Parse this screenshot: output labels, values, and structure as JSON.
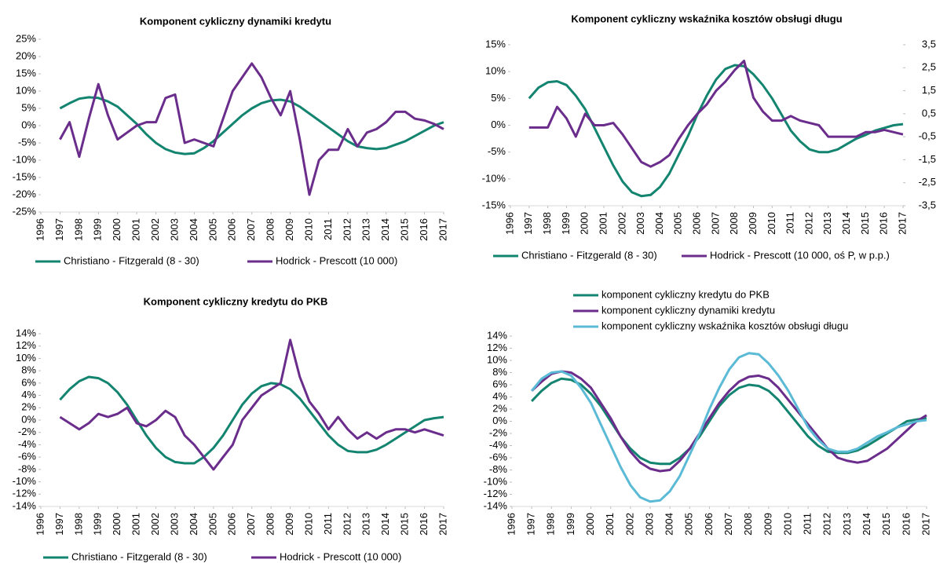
{
  "chart_data": [
    {
      "type": "line",
      "title": "Komponent cykliczny dynamiki kredytu",
      "legend": "bottom",
      "x": [
        1997,
        1997.5,
        1998,
        1998.5,
        1999,
        1999.5,
        2000,
        2000.5,
        2001,
        2001.5,
        2002,
        2002.5,
        2003,
        2003.5,
        2004,
        2004.5,
        2005,
        2005.5,
        2006,
        2006.5,
        2007,
        2007.5,
        2008,
        2008.5,
        2009,
        2009.5,
        2010,
        2010.5,
        2011,
        2011.5,
        2012,
        2012.5,
        2013,
        2013.5,
        2014,
        2014.5,
        2015,
        2015.5,
        2016,
        2016.5,
        2017
      ],
      "xlim": [
        1996,
        2017
      ],
      "xticks": [
        1996,
        1997,
        1998,
        1999,
        2000,
        2001,
        2002,
        2003,
        2004,
        2005,
        2006,
        2007,
        2008,
        2009,
        2010,
        2011,
        2012,
        2013,
        2014,
        2015,
        2016,
        2017
      ],
      "ylim": [
        -25,
        25
      ],
      "yticks": [
        {
          "value": -25,
          "label": "-25%"
        },
        {
          "value": -20,
          "label": "-20%"
        },
        {
          "value": -15,
          "label": "-15%"
        },
        {
          "value": -10,
          "label": "-10%"
        },
        {
          "value": -5,
          "label": "-5%"
        },
        {
          "value": 0,
          "label": "0%"
        },
        {
          "value": 5,
          "label": "5%"
        },
        {
          "value": 10,
          "label": "10%"
        },
        {
          "value": 15,
          "label": "15%"
        },
        {
          "value": 20,
          "label": "20%"
        },
        {
          "value": 25,
          "label": "25%"
        }
      ],
      "series": [
        {
          "name": "Christiano - Fitzgerald (8 - 30)",
          "color": "#13846f",
          "values": [
            5,
            6.5,
            7.8,
            8.2,
            8,
            7,
            5.5,
            3,
            0.5,
            -2.5,
            -5,
            -6.8,
            -7.8,
            -8.2,
            -8,
            -6.5,
            -4.5,
            -2,
            0.5,
            3,
            5,
            6.5,
            7.3,
            7.5,
            7,
            5.5,
            3.5,
            1.5,
            -0.5,
            -2.5,
            -4.5,
            -6,
            -6.5,
            -6.8,
            -6.5,
            -5.5,
            -4.5,
            -3,
            -1.5,
            0,
            1
          ]
        },
        {
          "name": "Hodrick - Prescott (10 000)",
          "color": "#6b2d8c",
          "values": [
            -4,
            1,
            -9,
            2,
            12,
            3,
            -4,
            -2,
            0,
            1,
            1,
            8,
            9,
            -5,
            -4,
            -5,
            -6,
            2,
            10,
            14,
            18,
            14,
            8,
            3,
            10,
            -4,
            -20,
            -10,
            -7,
            -7,
            -1,
            -6,
            -2,
            -1,
            1,
            4,
            4,
            2,
            1.5,
            0.5,
            -1
          ]
        }
      ]
    },
    {
      "type": "line",
      "title": "Komponent cykliczny wskaźnika kosztów obsługi długu",
      "legend": "bottom",
      "x": [
        1997,
        1997.5,
        1998,
        1998.5,
        1999,
        1999.5,
        2000,
        2000.5,
        2001,
        2001.5,
        2002,
        2002.5,
        2003,
        2003.5,
        2004,
        2004.5,
        2005,
        2005.5,
        2006,
        2006.5,
        2007,
        2007.5,
        2008,
        2008.5,
        2009,
        2009.5,
        2010,
        2010.5,
        2011,
        2011.5,
        2012,
        2012.5,
        2013,
        2013.5,
        2014,
        2014.5,
        2015,
        2015.5,
        2016,
        2016.5,
        2017
      ],
      "xlim": [
        1996,
        2017
      ],
      "xticks": [
        1996,
        1997,
        1998,
        1999,
        2000,
        2001,
        2002,
        2003,
        2004,
        2005,
        2006,
        2007,
        2008,
        2009,
        2010,
        2011,
        2012,
        2013,
        2014,
        2015,
        2016,
        2017
      ],
      "ylim": [
        -15,
        15
      ],
      "yticks": [
        {
          "value": -15,
          "label": "-15%"
        },
        {
          "value": -10,
          "label": "-10%"
        },
        {
          "value": -5,
          "label": "-5%"
        },
        {
          "value": 0,
          "label": "0%"
        },
        {
          "value": 5,
          "label": "5%"
        },
        {
          "value": 10,
          "label": "10%"
        },
        {
          "value": 15,
          "label": "15%"
        }
      ],
      "y2lim": [
        -3.5,
        3.5
      ],
      "y2ticks": [
        {
          "value": -3.5,
          "label": "-3,5"
        },
        {
          "value": -2.5,
          "label": "-2,5"
        },
        {
          "value": -1.5,
          "label": "-1,5"
        },
        {
          "value": -0.5,
          "label": "-0,5"
        },
        {
          "value": 0.5,
          "label": "0,5"
        },
        {
          "value": 1.5,
          "label": "1,5"
        },
        {
          "value": 2.5,
          "label": "2,5"
        },
        {
          "value": 3.5,
          "label": "3,5"
        }
      ],
      "series": [
        {
          "name": "Christiano - Fitzgerald (8 - 30)",
          "color": "#13846f",
          "values": [
            5,
            7,
            8,
            8.2,
            7.5,
            5.5,
            3,
            -0.5,
            -4,
            -7.5,
            -10.5,
            -12.5,
            -13.2,
            -13,
            -11.5,
            -9,
            -5.5,
            -2,
            2,
            5.5,
            8.5,
            10.5,
            11.2,
            11,
            9.5,
            7.5,
            5,
            2,
            -1,
            -3,
            -4.5,
            -5,
            -5,
            -4.5,
            -3.5,
            -2.5,
            -1.8,
            -1,
            -0.5,
            0,
            0.2
          ]
        },
        {
          "name": "Hodrick - Prescott (10 000, oś P, w p.p.)",
          "color": "#6b2d8c",
          "axis": "y2",
          "values": [
            -0.1,
            -0.1,
            -0.1,
            0.8,
            0.3,
            -0.5,
            0.5,
            0,
            0,
            0.1,
            -0.4,
            -1,
            -1.6,
            -1.8,
            -1.6,
            -1.3,
            -0.6,
            0,
            0.5,
            0.9,
            1.5,
            1.9,
            2.4,
            2.8,
            1.2,
            0.6,
            0.2,
            0.2,
            0.4,
            0.2,
            0.1,
            0,
            -0.5,
            -0.5,
            -0.5,
            -0.5,
            -0.3,
            -0.3,
            -0.2,
            -0.3,
            -0.4
          ]
        }
      ]
    },
    {
      "type": "line",
      "title": "Komponent cykliczny kredytu do PKB",
      "legend": "bottom",
      "x": [
        1997,
        1997.5,
        1998,
        1998.5,
        1999,
        1999.5,
        2000,
        2000.5,
        2001,
        2001.5,
        2002,
        2002.5,
        2003,
        2003.5,
        2004,
        2004.5,
        2005,
        2005.5,
        2006,
        2006.5,
        2007,
        2007.5,
        2008,
        2008.5,
        2009,
        2009.5,
        2010,
        2010.5,
        2011,
        2011.5,
        2012,
        2012.5,
        2013,
        2013.5,
        2014,
        2014.5,
        2015,
        2015.5,
        2016,
        2016.5,
        2017
      ],
      "xlim": [
        1996,
        2017
      ],
      "xticks": [
        1996,
        1997,
        1998,
        1999,
        2000,
        2001,
        2002,
        2003,
        2004,
        2005,
        2006,
        2007,
        2008,
        2009,
        2010,
        2011,
        2012,
        2013,
        2014,
        2015,
        2016,
        2017
      ],
      "ylim": [
        -14,
        14
      ],
      "yticks": [
        {
          "value": -14,
          "label": "-14%"
        },
        {
          "value": -12,
          "label": "-12%"
        },
        {
          "value": -10,
          "label": "-10%"
        },
        {
          "value": -8,
          "label": "-8%"
        },
        {
          "value": -6,
          "label": "-6%"
        },
        {
          "value": -4,
          "label": "-4%"
        },
        {
          "value": -2,
          "label": "-2%"
        },
        {
          "value": 0,
          "label": "0%"
        },
        {
          "value": 2,
          "label": "2%"
        },
        {
          "value": 4,
          "label": "4%"
        },
        {
          "value": 6,
          "label": "6%"
        },
        {
          "value": 8,
          "label": "8%"
        },
        {
          "value": 10,
          "label": "10%"
        },
        {
          "value": 12,
          "label": "12%"
        },
        {
          "value": 14,
          "label": "14%"
        }
      ],
      "series": [
        {
          "name": "Christiano - Fitzgerald (8 - 30)",
          "color": "#13846f",
          "values": [
            3.3,
            5,
            6.3,
            7,
            6.8,
            6,
            4.5,
            2.5,
            0,
            -2.5,
            -4.5,
            -6,
            -6.8,
            -7,
            -7,
            -6,
            -4.5,
            -2.5,
            0,
            2.5,
            4.3,
            5.5,
            6,
            5.8,
            5,
            3.5,
            1.5,
            -0.5,
            -2.5,
            -4,
            -5,
            -5.2,
            -5.2,
            -4.8,
            -4,
            -3,
            -2,
            -1,
            0,
            0.3,
            0.5
          ]
        },
        {
          "name": "Hodrick - Prescott (10 000)",
          "color": "#6b2d8c",
          "values": [
            0.5,
            -0.5,
            -1.5,
            -0.5,
            1,
            0.5,
            1,
            2,
            -0.5,
            -1,
            0,
            1.5,
            0.5,
            -2.5,
            -4,
            -6,
            -8,
            -6,
            -4,
            0,
            2,
            4,
            5,
            6,
            13,
            7,
            3,
            1,
            -1.5,
            0.5,
            -1.5,
            -3,
            -2,
            -3,
            -2,
            -1.5,
            -1.5,
            -2,
            -1.5,
            -2,
            -2.5
          ]
        }
      ]
    },
    {
      "type": "line",
      "legend": "top",
      "x": [
        1997,
        1997.5,
        1998,
        1998.5,
        1999,
        1999.5,
        2000,
        2000.5,
        2001,
        2001.5,
        2002,
        2002.5,
        2003,
        2003.5,
        2004,
        2004.5,
        2005,
        2005.5,
        2006,
        2006.5,
        2007,
        2007.5,
        2008,
        2008.5,
        2009,
        2009.5,
        2010,
        2010.5,
        2011,
        2011.5,
        2012,
        2012.5,
        2013,
        2013.5,
        2014,
        2014.5,
        2015,
        2015.5,
        2016,
        2016.5,
        2017
      ],
      "xlim": [
        1996,
        2017
      ],
      "xticks": [
        1996,
        1997,
        1998,
        1999,
        2000,
        2001,
        2002,
        2003,
        2004,
        2005,
        2006,
        2007,
        2008,
        2009,
        2010,
        2011,
        2012,
        2013,
        2014,
        2015,
        2016,
        2017
      ],
      "ylim": [
        -14,
        14
      ],
      "yticks": [
        {
          "value": -14,
          "label": "-14%"
        },
        {
          "value": -12,
          "label": "-12%"
        },
        {
          "value": -10,
          "label": "-10%"
        },
        {
          "value": -8,
          "label": "-8%"
        },
        {
          "value": -6,
          "label": "-6%"
        },
        {
          "value": -4,
          "label": "-4%"
        },
        {
          "value": -2,
          "label": "-2%"
        },
        {
          "value": 0,
          "label": "0%"
        },
        {
          "value": 2,
          "label": "2%"
        },
        {
          "value": 4,
          "label": "4%"
        },
        {
          "value": 6,
          "label": "6%"
        },
        {
          "value": 8,
          "label": "8%"
        },
        {
          "value": 10,
          "label": "10%"
        },
        {
          "value": 12,
          "label": "12%"
        },
        {
          "value": 14,
          "label": "14%"
        }
      ],
      "series": [
        {
          "name": "komponent cykliczny kredytu do PKB",
          "color": "#13846f",
          "values": [
            3.3,
            5,
            6.3,
            7,
            6.8,
            6,
            4.5,
            2.5,
            0,
            -2.5,
            -4.5,
            -6,
            -6.8,
            -7,
            -7,
            -6,
            -4.5,
            -2.5,
            0,
            2.5,
            4.3,
            5.5,
            6,
            5.8,
            5,
            3.5,
            1.5,
            -0.5,
            -2.5,
            -4,
            -5,
            -5.2,
            -5.2,
            -4.8,
            -4,
            -3,
            -2,
            -1,
            0,
            0.3,
            0.5
          ]
        },
        {
          "name": "komponent cykliczny dynamiki kredytu",
          "color": "#6b2d8c",
          "values": [
            5,
            6.5,
            7.8,
            8.2,
            8,
            7,
            5.5,
            3,
            0.5,
            -2.5,
            -5,
            -6.8,
            -7.8,
            -8.2,
            -8,
            -6.5,
            -4.5,
            -2,
            0.5,
            3,
            5,
            6.5,
            7.3,
            7.5,
            7,
            5.5,
            3.5,
            1.5,
            -0.5,
            -2.5,
            -4.5,
            -6,
            -6.5,
            -6.8,
            -6.5,
            -5.5,
            -4.5,
            -3,
            -1.5,
            0,
            1
          ]
        },
        {
          "name": "komponent cykliczny wskaźnika kosztów obsługi długu",
          "color": "#5bbad5",
          "values": [
            5,
            7,
            8,
            8.2,
            7.5,
            5.5,
            3,
            -0.5,
            -4,
            -7.5,
            -10.5,
            -12.5,
            -13.2,
            -13,
            -11.5,
            -9,
            -5.5,
            -2,
            2,
            5.5,
            8.5,
            10.5,
            11.2,
            11,
            9.5,
            7.5,
            5,
            2,
            -1,
            -3,
            -4.5,
            -5,
            -5,
            -4.5,
            -3.5,
            -2.5,
            -1.8,
            -1,
            -0.5,
            0,
            0.2
          ]
        }
      ]
    }
  ]
}
